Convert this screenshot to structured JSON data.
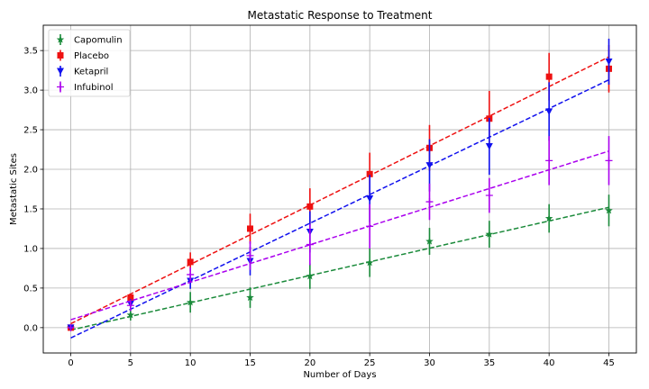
{
  "chart_data": {
    "type": "line",
    "title": "Metastatic Response to Treatment",
    "xlabel": "Number of Days",
    "ylabel": "Metastatic Sites",
    "x": [
      0,
      5,
      10,
      15,
      20,
      25,
      30,
      35,
      40,
      45
    ],
    "xticks": [
      "0",
      "5",
      "10",
      "15",
      "20",
      "25",
      "30",
      "35",
      "40",
      "45"
    ],
    "yticks": [
      "0.0",
      "0.5",
      "1.0",
      "1.5",
      "2.0",
      "2.5",
      "3.0",
      "3.5"
    ],
    "xlim": [
      -2.3,
      47.3
    ],
    "ylim": [
      -0.32,
      3.82
    ],
    "grid": true,
    "legend_position": "top-left",
    "series": [
      {
        "name": "Capomulin",
        "color": "#1a8a3a",
        "marker": "star",
        "values": [
          0.0,
          0.16,
          0.32,
          0.38,
          0.65,
          0.82,
          1.09,
          1.18,
          1.38,
          1.48
        ],
        "errors": [
          0.0,
          0.07,
          0.13,
          0.13,
          0.16,
          0.18,
          0.17,
          0.17,
          0.18,
          0.2
        ],
        "trend": [
          -0.03,
          1.52
        ]
      },
      {
        "name": "Placebo",
        "color": "#ee1111",
        "marker": "square",
        "values": [
          0.0,
          0.38,
          0.83,
          1.25,
          1.53,
          1.94,
          2.27,
          2.64,
          3.17,
          3.27
        ],
        "errors": [
          0.0,
          0.05,
          0.12,
          0.19,
          0.23,
          0.27,
          0.29,
          0.35,
          0.3,
          0.3
        ],
        "trend": [
          0.05,
          3.42
        ]
      },
      {
        "name": "Ketapril",
        "color": "#1010ee",
        "marker": "triangle-down",
        "values": [
          0.0,
          0.3,
          0.59,
          0.84,
          1.21,
          1.63,
          2.05,
          2.29,
          2.73,
          3.36
        ],
        "errors": [
          0.0,
          0.06,
          0.1,
          0.18,
          0.26,
          0.3,
          0.33,
          0.36,
          0.37,
          0.29
        ],
        "trend": [
          -0.13,
          3.13
        ]
      },
      {
        "name": "Infubinol",
        "color": "#aa00ee",
        "marker": "plus",
        "values": [
          0.0,
          0.28,
          0.67,
          0.91,
          1.05,
          1.28,
          1.59,
          1.67,
          2.11,
          2.11
        ],
        "errors": [
          0.0,
          0.07,
          0.09,
          0.18,
          0.26,
          0.28,
          0.23,
          0.22,
          0.31,
          0.31
        ],
        "trend": [
          0.1,
          2.23
        ]
      }
    ]
  }
}
